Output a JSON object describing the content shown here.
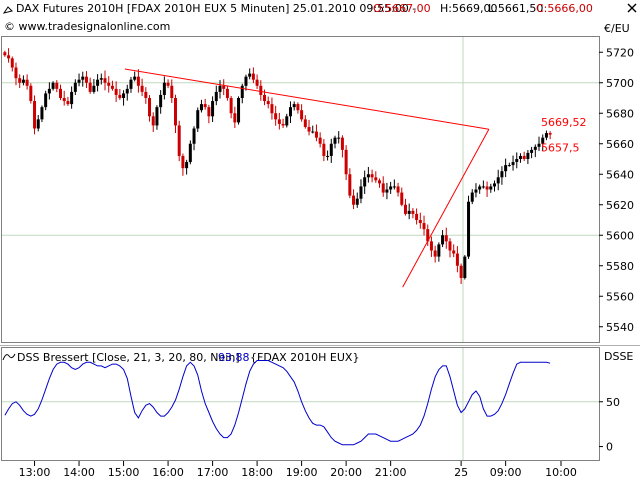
{
  "header": {
    "title": "DAX Futures 2010H [FDAX 2010H EUX  5 Minuten] 25.01.2010 09:55:00 -",
    "open": "O:5667,00",
    "high": "H:5669,00",
    "low": "L:5661,50",
    "close": "C:5666,00",
    "watermark": "© www.tradesignalonline.com",
    "close_icon": "close-x-icon"
  },
  "colors": {
    "up": "#000000",
    "down": "#cc0000",
    "trendline": "#ff0000",
    "indicator": "#0000cc",
    "grid": "#c0d8c0",
    "frame": "#808080",
    "separator": "#b0b0b0"
  },
  "chart_data": [
    {
      "type": "candlestick",
      "unit_label": "€/EU",
      "yaxis": {
        "ticks": [
          5540,
          5560,
          5580,
          5600,
          5620,
          5640,
          5660,
          5680,
          5700,
          5720
        ],
        "ylim": [
          5530,
          5730
        ],
        "gridlines": [
          5600,
          5700
        ]
      },
      "trend_upper": {
        "from": [
          0.222,
          5709
        ],
        "to": [
          0.885,
          5669.52
        ]
      },
      "trend_lower": {
        "from": [
          0.728,
          5566
        ],
        "to": [
          0.885,
          5669.52
        ]
      },
      "label_upper": "5669,52",
      "label_lower": "5657,5",
      "closes": [
        5718,
        5716,
        5710,
        5703,
        5700,
        5702,
        5698,
        5688,
        5670,
        5676,
        5684,
        5693,
        5696,
        5700,
        5696,
        5690,
        5688,
        5686,
        5694,
        5700,
        5702,
        5704,
        5700,
        5694,
        5698,
        5702,
        5703,
        5700,
        5698,
        5696,
        5692,
        5690,
        5693,
        5696,
        5702,
        5704,
        5698,
        5694,
        5690,
        5678,
        5672,
        5684,
        5692,
        5700,
        5698,
        5690,
        5672,
        5652,
        5644,
        5648,
        5660,
        5670,
        5682,
        5686,
        5684,
        5678,
        5688,
        5694,
        5698,
        5696,
        5690,
        5680,
        5674,
        5690,
        5698,
        5704,
        5706,
        5702,
        5698,
        5692,
        5688,
        5686,
        5680,
        5676,
        5673,
        5672,
        5678,
        5684,
        5686,
        5682,
        5676,
        5671,
        5668,
        5668,
        5664,
        5660,
        5652,
        5652,
        5660,
        5664,
        5664,
        5656,
        5640,
        5626,
        5620,
        5624,
        5632,
        5638,
        5640,
        5638,
        5636,
        5634,
        5628,
        5630,
        5632,
        5632,
        5628,
        5620,
        5614,
        5616,
        5614,
        5610,
        5608,
        5604,
        5596,
        5590,
        5586,
        5594,
        5600,
        5596,
        5590,
        5588,
        5580,
        5572,
        5586,
        5622,
        5628,
        5630,
        5632,
        5632,
        5630,
        5632,
        5634,
        5638,
        5642,
        5646,
        5646,
        5648,
        5650,
        5652,
        5650,
        5654,
        5656,
        5658,
        5660,
        5664,
        5667,
        5666
      ],
      "xaxis": {
        "ticks": [
          "13:00",
          "14:00",
          "15:00",
          "16:00",
          "17:00",
          "18:00",
          "19:00",
          "20:00",
          "21:00",
          "25",
          "09:00",
          "10:00"
        ]
      }
    },
    {
      "type": "line",
      "title": "DSS Bressert [Close, 21, 3, 20, 80, Nein]",
      "value": "93,88",
      "instrument": "{FDAX 2010H EUX}",
      "unit_label": "DSSE",
      "yaxis": {
        "ticks": [
          0,
          50
        ],
        "ylim": [
          -15,
          110
        ],
        "gridlines": [
          50
        ]
      },
      "values": [
        35,
        42,
        48,
        50,
        46,
        40,
        36,
        34,
        36,
        42,
        52,
        64,
        76,
        86,
        92,
        94,
        94,
        92,
        88,
        86,
        88,
        92,
        94,
        94,
        92,
        90,
        90,
        88,
        90,
        92,
        92,
        90,
        86,
        76,
        56,
        38,
        32,
        40,
        46,
        48,
        44,
        38,
        34,
        34,
        38,
        44,
        52,
        64,
        78,
        90,
        94,
        90,
        80,
        62,
        48,
        38,
        28,
        20,
        14,
        10,
        10,
        14,
        24,
        38,
        54,
        70,
        84,
        92,
        96,
        96,
        96,
        96,
        94,
        92,
        90,
        88,
        84,
        78,
        72,
        62,
        50,
        40,
        32,
        26,
        24,
        24,
        22,
        16,
        10,
        6,
        4,
        2,
        2,
        2,
        2,
        4,
        6,
        10,
        14,
        14,
        14,
        12,
        10,
        8,
        6,
        6,
        6,
        8,
        10,
        12,
        14,
        18,
        24,
        34,
        48,
        64,
        78,
        86,
        90,
        90,
        78,
        62,
        46,
        38,
        42,
        50,
        58,
        62,
        56,
        42,
        34,
        34,
        36,
        40,
        48,
        58,
        70,
        82,
        92,
        94,
        94,
        94,
        94,
        94,
        94,
        94,
        94,
        93
      ]
    }
  ]
}
